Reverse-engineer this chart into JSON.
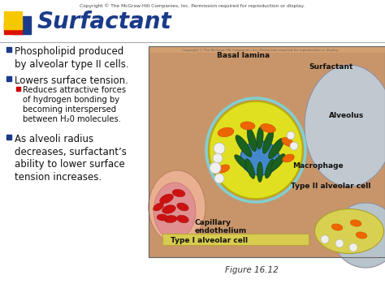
{
  "title": "Surfactant",
  "title_color": "#1a3a8a",
  "background_color": "#ffffff",
  "top_copyright": "Copyright © The McGraw-Hill Companies, Inc. Permission required for reproduction or display.",
  "bottom_label": "Figure 16.12",
  "bullet_color": "#1a3a8a",
  "sub_bullet_color": "#cc0000",
  "bullets": [
    "Phospholipid produced\nby alveolar type II cells.",
    "Lowers surface tension."
  ],
  "sub_bullets": [
    "Reduces attractive forces\nof hydrogen bonding by\nbecoming interspersed\nbetween H₂0 molecules."
  ],
  "third_bullet": "As alveoli radius\ndecreases, surfactant’s\nability to lower surface\ntension increases.",
  "logo_colors": {
    "yellow": "#f5c800",
    "red": "#dd1100",
    "blue": "#1a3a8a"
  },
  "img_copyright": "Copyright © The McGraw-Hill Companies, Inc. Permission required for reproduction or display.",
  "img_labels": {
    "basal_lamina": "Basal lamina",
    "surfactant": "Surfactant",
    "alveolus": "Alveolus",
    "macrophage": "Macrophage",
    "type2": "Type II alveolar cell",
    "capillary": "Capillary\nendothelium",
    "type1": "Type I alveolar cell"
  }
}
